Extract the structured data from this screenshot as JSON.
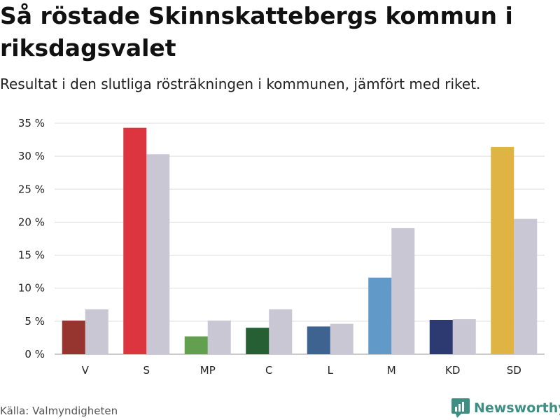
{
  "chart_data": {
    "type": "bar",
    "title": "Så röstade Skinnskattebergs kommun i riksdagsvalet",
    "subtitle": "Resultat i den slutliga rösträkningen i kommunen, jämfört med riket.",
    "categories": [
      "V",
      "S",
      "MP",
      "C",
      "L",
      "M",
      "KD",
      "SD"
    ],
    "series": [
      {
        "name": "Skinnskatteberg",
        "values": [
          5.1,
          34.3,
          2.7,
          4.0,
          4.2,
          11.6,
          5.2,
          31.4
        ],
        "colors": [
          "#96352f",
          "#dc3540",
          "#62a04f",
          "#255f33",
          "#3f6390",
          "#6199c9",
          "#2d3a72",
          "#dfb444"
        ]
      },
      {
        "name": "Riket",
        "values": [
          6.8,
          30.3,
          5.1,
          6.8,
          4.6,
          19.1,
          5.3,
          20.5
        ],
        "color": "#c8c7d3"
      }
    ],
    "yticks": [
      "0 %",
      "5 %",
      "10 %",
      "15 %",
      "20 %",
      "25 %",
      "30 %",
      "35 %"
    ],
    "ylim": [
      0,
      35
    ],
    "xlabel": "",
    "ylabel": "",
    "grid": true
  },
  "footer": {
    "source": "Källa: Valmyndigheten",
    "brand": "Newsworthy",
    "brand_color": "#3d8f84"
  }
}
